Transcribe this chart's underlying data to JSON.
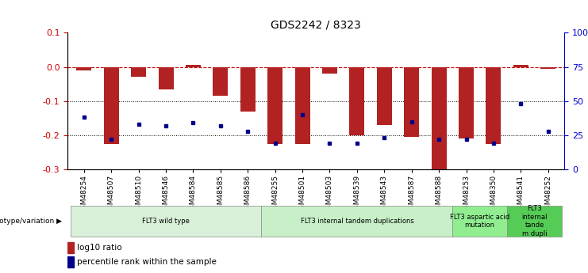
{
  "title": "GDS2242 / 8323",
  "samples": [
    "GSM48254",
    "GSM48507",
    "GSM48510",
    "GSM48546",
    "GSM48584",
    "GSM48585",
    "GSM48586",
    "GSM48255",
    "GSM48501",
    "GSM48503",
    "GSM48539",
    "GSM48543",
    "GSM48587",
    "GSM48588",
    "GSM48253",
    "GSM48350",
    "GSM48541",
    "GSM48252"
  ],
  "log10_ratio": [
    -0.01,
    -0.225,
    -0.03,
    -0.065,
    0.005,
    -0.085,
    -0.13,
    -0.225,
    -0.225,
    -0.02,
    -0.2,
    -0.17,
    -0.205,
    -0.305,
    -0.21,
    -0.225,
    0.005,
    -0.005
  ],
  "percentile_rank_pct": [
    38,
    22,
    33,
    32,
    34,
    32,
    28,
    19,
    40,
    19,
    19,
    23,
    35,
    22,
    22,
    19,
    48,
    28
  ],
  "bar_color": "#b22222",
  "dot_color": "#00008b",
  "dashed_line_color": "#cc0000",
  "ylim_left": [
    -0.3,
    0.1
  ],
  "ylim_right": [
    0,
    100
  ],
  "yticks_left": [
    -0.3,
    -0.2,
    -0.1,
    0.0,
    0.1
  ],
  "yticks_right": [
    0,
    25,
    50,
    75,
    100
  ],
  "groups": [
    {
      "label": "FLT3 wild type",
      "start": 0,
      "end": 7,
      "color": "#d8f0d8"
    },
    {
      "label": "FLT3 internal tandem duplications",
      "start": 7,
      "end": 14,
      "color": "#c8f0c8"
    },
    {
      "label": "FLT3 aspartic acid\nmutation",
      "start": 14,
      "end": 16,
      "color": "#90ee90"
    },
    {
      "label": "FLT3\ninternal\ntande\nm dupli",
      "start": 16,
      "end": 18,
      "color": "#55cc55"
    }
  ],
  "genotype_label": "genotype/variation"
}
